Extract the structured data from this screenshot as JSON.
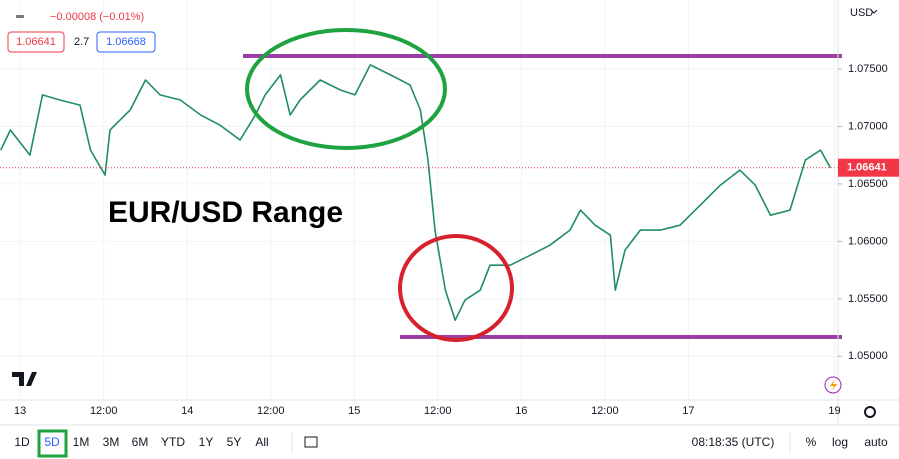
{
  "header": {
    "change": "−0.00008 (−0.01%)",
    "bid": "1.06641",
    "spread": "2.7",
    "ask": "1.06668"
  },
  "currency": "USD",
  "toolbar": {
    "ranges": [
      "1D",
      "5D",
      "1M",
      "3M",
      "6M",
      "YTD",
      "1Y",
      "5Y",
      "All"
    ],
    "active": "5D",
    "time": "08:18:35 (UTC)",
    "percent": "%",
    "log": "log",
    "auto": "auto"
  },
  "chart_data": {
    "type": "line",
    "title": "EUR/USD Range",
    "color": "#1f8f5f",
    "x": [
      -2.8,
      -1.4,
      1.4,
      3.2,
      5.7,
      8.6,
      10.1,
      12.2,
      12.9,
      15.8,
      18.0,
      20.1,
      23.0,
      25.9,
      28.7,
      31.6,
      33.8,
      35.2,
      37.4,
      38.8,
      40.2,
      43.1,
      46.0,
      48.1,
      50.3,
      53.2,
      56.0,
      57.5,
      58.6,
      59.6,
      61.1,
      62.5,
      63.9,
      66.1,
      67.5,
      70.4,
      73.3,
      76.1,
      79.0,
      80.5,
      82.6,
      84.8,
      85.5,
      86.9,
      89.1,
      92.0,
      94.8,
      97.7,
      100.6,
      103.4,
      105.6,
      107.8,
      110.6,
      112.8,
      115.0,
      116.4
    ],
    "values": [
      1.06794,
      1.06969,
      1.06751,
      1.07274,
      1.0723,
      1.07186,
      1.06794,
      1.06577,
      1.06969,
      1.07143,
      1.07404,
      1.07274,
      1.0723,
      1.071,
      1.07012,
      1.06882,
      1.071,
      1.07274,
      1.07448,
      1.071,
      1.0723,
      1.07404,
      1.07317,
      1.07274,
      1.07535,
      1.07448,
      1.07361,
      1.07143,
      1.06707,
      1.06098,
      1.05575,
      1.05314,
      1.05488,
      1.05575,
      1.05793,
      1.05793,
      1.0588,
      1.05967,
      1.06098,
      1.06272,
      1.06141,
      1.06054,
      1.05575,
      1.05923,
      1.06098,
      1.06098,
      1.06141,
      1.06315,
      1.0649,
      1.0662,
      1.0649,
      1.06228,
      1.06272,
      1.06707,
      1.06794,
      1.06641
    ],
    "xlim": [
      -2.9,
      117.5
    ],
    "xticks": [
      {
        "value": 0,
        "label": "13"
      },
      {
        "value": 12,
        "label": "12:00"
      },
      {
        "value": 24,
        "label": "14"
      },
      {
        "value": 36,
        "label": "12:00"
      },
      {
        "value": 48,
        "label": "15"
      },
      {
        "value": 60,
        "label": "12:00"
      },
      {
        "value": 72,
        "label": "16"
      },
      {
        "value": 84,
        "label": "12:00"
      },
      {
        "value": 96,
        "label": "17"
      },
      {
        "value": 117,
        "label": "19"
      }
    ],
    "ylim": [
      1.0462,
      1.081
    ],
    "yticks": [
      {
        "value": 1.05,
        "label": "1.05000"
      },
      {
        "value": 1.055,
        "label": "1.05500"
      },
      {
        "value": 1.06,
        "label": "1.06000"
      },
      {
        "value": 1.065,
        "label": "1.06500"
      },
      {
        "value": 1.07,
        "label": "1.07000"
      },
      {
        "value": 1.075,
        "label": "1.07500"
      }
    ],
    "grid": true,
    "last_price": {
      "value": 1.06641,
      "label": "1.06641",
      "color": "#f23645"
    }
  }
}
